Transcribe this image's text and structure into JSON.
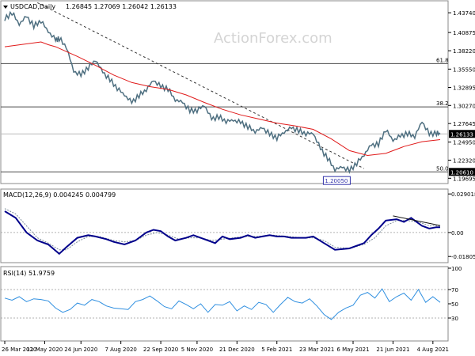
{
  "chart_data": [
    {
      "type": "candlestick",
      "symbol_label": "USDCAD,Daily",
      "ohlc_label": "1.26845 1.27069 1.26042 1.26133",
      "watermark": "ActionForex.com",
      "ylim": [
        1.1915,
        1.4525
      ],
      "y_ticks": [
        1.4374,
        1.4087,
        1.3822,
        1.3555,
        1.3289,
        1.3027,
        1.2764,
        1.2495,
        1.2232,
        1.1969
      ],
      "y_tick_labels": [
        "1.43740",
        "1.40875",
        "1.38220",
        "1.35550",
        "1.32895",
        "1.30270",
        "1.27645",
        "1.24950",
        "1.22320",
        "1.19695"
      ],
      "current_price": 1.26133,
      "current_price_label": "1.26133",
      "fib_levels": [
        {
          "label": "61.8",
          "value": 1.3635
        },
        {
          "label": "38.2",
          "value": 1.3006
        },
        {
          "label": "50.0",
          "value": 1.2061,
          "value_label": "1.20610"
        }
      ],
      "low_label": "1.20050",
      "low_value": 1.2005,
      "close_path": [
        [
          0,
          1.428
        ],
        [
          2,
          1.438
        ],
        [
          4,
          1.421
        ],
        [
          6,
          1.432
        ],
        [
          8,
          1.418
        ],
        [
          10,
          1.426
        ],
        [
          12,
          1.41
        ],
        [
          14,
          1.398
        ],
        [
          15,
          1.4
        ],
        [
          17,
          1.388
        ],
        [
          19,
          1.352
        ],
        [
          21,
          1.347
        ],
        [
          23,
          1.358
        ],
        [
          25,
          1.369
        ],
        [
          27,
          1.351
        ],
        [
          29,
          1.34
        ],
        [
          31,
          1.328
        ],
        [
          33,
          1.318
        ],
        [
          35,
          1.307
        ],
        [
          37,
          1.317
        ],
        [
          39,
          1.326
        ],
        [
          41,
          1.339
        ],
        [
          43,
          1.33
        ],
        [
          45,
          1.327
        ],
        [
          47,
          1.311
        ],
        [
          49,
          1.307
        ],
        [
          51,
          1.295
        ],
        [
          53,
          1.296
        ],
        [
          55,
          1.303
        ],
        [
          57,
          1.283
        ],
        [
          59,
          1.286
        ],
        [
          61,
          1.28
        ],
        [
          63,
          1.281
        ],
        [
          65,
          1.278
        ],
        [
          67,
          1.272
        ],
        [
          69,
          1.265
        ],
        [
          71,
          1.27
        ],
        [
          73,
          1.261
        ],
        [
          75,
          1.256
        ],
        [
          77,
          1.264
        ],
        [
          79,
          1.27
        ],
        [
          81,
          1.266
        ],
        [
          83,
          1.262
        ],
        [
          85,
          1.262
        ],
        [
          87,
          1.24
        ],
        [
          89,
          1.226
        ],
        [
          91,
          1.21
        ],
        [
          93,
          1.213
        ],
        [
          95,
          1.208
        ],
        [
          97,
          1.219
        ],
        [
          99,
          1.231
        ],
        [
          101,
          1.245
        ],
        [
          103,
          1.246
        ],
        [
          105,
          1.268
        ],
        [
          107,
          1.252
        ],
        [
          109,
          1.258
        ],
        [
          111,
          1.262
        ],
        [
          113,
          1.258
        ],
        [
          115,
          1.279
        ],
        [
          117,
          1.261
        ],
        [
          119,
          1.263
        ],
        [
          120,
          1.261
        ]
      ],
      "ma_path": [
        [
          0,
          1.388
        ],
        [
          10,
          1.395
        ],
        [
          12,
          1.391
        ],
        [
          14,
          1.388
        ],
        [
          17,
          1.381
        ],
        [
          20,
          1.374
        ],
        [
          25,
          1.361
        ],
        [
          30,
          1.347
        ],
        [
          35,
          1.336
        ],
        [
          40,
          1.33
        ],
        [
          45,
          1.326
        ],
        [
          50,
          1.318
        ],
        [
          55,
          1.307
        ],
        [
          60,
          1.297
        ],
        [
          65,
          1.289
        ],
        [
          70,
          1.283
        ],
        [
          75,
          1.277
        ],
        [
          80,
          1.273
        ],
        [
          85,
          1.268
        ],
        [
          90,
          1.254
        ],
        [
          95,
          1.237
        ],
        [
          100,
          1.23
        ],
        [
          105,
          1.233
        ],
        [
          110,
          1.243
        ],
        [
          115,
          1.25
        ],
        [
          120,
          1.253
        ]
      ],
      "trendlines": [
        {
          "from": [
            9,
            1.452
          ],
          "to": [
            99,
            1.211
          ],
          "style": "dashed"
        }
      ]
    },
    {
      "type": "macd",
      "label": "MACD(12,26,9) 0.004245 0.004799",
      "ylim": [
        -0.0215,
        0.0315
      ],
      "y_ticks": [
        0.029018,
        0.0,
        -0.018055
      ],
      "y_tick_labels": [
        "0.029018",
        "0.00",
        "-0.018055"
      ],
      "macd_path": [
        [
          0,
          0.016
        ],
        [
          3,
          0.011
        ],
        [
          6,
          0.0
        ],
        [
          9,
          -0.006
        ],
        [
          12,
          -0.009
        ],
        [
          15,
          -0.016
        ],
        [
          17,
          -0.011
        ],
        [
          20,
          -0.004
        ],
        [
          23,
          -0.002
        ],
        [
          25,
          -0.003
        ],
        [
          28,
          -0.005
        ],
        [
          30,
          -0.007
        ],
        [
          33,
          -0.009
        ],
        [
          36,
          -0.006
        ],
        [
          39,
          0.0
        ],
        [
          41,
          0.002
        ],
        [
          43,
          0.001
        ],
        [
          45,
          -0.003
        ],
        [
          47,
          -0.006
        ],
        [
          50,
          -0.004
        ],
        [
          52,
          -0.002
        ],
        [
          55,
          -0.005
        ],
        [
          58,
          -0.008
        ],
        [
          60,
          -0.003
        ],
        [
          62,
          -0.005
        ],
        [
          65,
          -0.004
        ],
        [
          67,
          -0.002
        ],
        [
          69,
          -0.004
        ],
        [
          71,
          -0.003
        ],
        [
          73,
          -0.002
        ],
        [
          75,
          -0.003
        ],
        [
          77,
          -0.003
        ],
        [
          79,
          -0.004
        ],
        [
          81,
          -0.004
        ],
        [
          83,
          -0.004
        ],
        [
          85,
          -0.003
        ],
        [
          88,
          -0.008
        ],
        [
          91,
          -0.013
        ],
        [
          95,
          -0.012
        ],
        [
          99,
          -0.008
        ],
        [
          101,
          -0.002
        ],
        [
          103,
          0.003
        ],
        [
          105,
          0.009
        ],
        [
          108,
          0.01
        ],
        [
          110,
          0.008
        ],
        [
          112,
          0.011
        ],
        [
          115,
          0.005
        ],
        [
          117,
          0.003
        ],
        [
          119,
          0.004
        ],
        [
          120,
          0.004
        ]
      ],
      "signal_path": [
        [
          0,
          0.018
        ],
        [
          3,
          0.014
        ],
        [
          6,
          0.005
        ],
        [
          9,
          -0.004
        ],
        [
          12,
          -0.008
        ],
        [
          15,
          -0.013
        ],
        [
          17,
          -0.013
        ],
        [
          20,
          -0.007
        ],
        [
          23,
          -0.003
        ],
        [
          26,
          -0.003
        ],
        [
          30,
          -0.006
        ],
        [
          33,
          -0.007
        ],
        [
          36,
          -0.006
        ],
        [
          39,
          -0.002
        ],
        [
          42,
          0.0
        ],
        [
          45,
          -0.002
        ],
        [
          48,
          -0.005
        ],
        [
          51,
          -0.004
        ],
        [
          54,
          -0.004
        ],
        [
          57,
          -0.006
        ],
        [
          60,
          -0.005
        ],
        [
          63,
          -0.004
        ],
        [
          66,
          -0.003
        ],
        [
          70,
          -0.003
        ],
        [
          74,
          -0.002
        ],
        [
          78,
          -0.003
        ],
        [
          82,
          -0.004
        ],
        [
          85,
          -0.004
        ],
        [
          88,
          -0.006
        ],
        [
          91,
          -0.011
        ],
        [
          95,
          -0.012
        ],
        [
          99,
          -0.009
        ],
        [
          102,
          -0.004
        ],
        [
          105,
          0.005
        ],
        [
          108,
          0.009
        ],
        [
          111,
          0.009
        ],
        [
          114,
          0.008
        ],
        [
          117,
          0.005
        ],
        [
          120,
          0.005
        ]
      ],
      "trendlines": [
        {
          "from": [
            107,
            0.0125
          ],
          "to": [
            120,
            0.0052
          ],
          "style": "solid"
        }
      ]
    },
    {
      "type": "rsi",
      "label": "RSI(14) 51.9759",
      "ylim": [
        0,
        100
      ],
      "y_ticks": [
        100,
        70,
        50,
        30
      ],
      "y_tick_labels": [
        "100",
        "70",
        "50",
        "30"
      ],
      "rsi_path": [
        [
          0,
          58
        ],
        [
          2,
          55
        ],
        [
          4,
          60
        ],
        [
          6,
          53
        ],
        [
          8,
          57
        ],
        [
          10,
          56
        ],
        [
          12,
          54
        ],
        [
          14,
          44
        ],
        [
          16,
          38
        ],
        [
          18,
          42
        ],
        [
          20,
          51
        ],
        [
          22,
          48
        ],
        [
          24,
          56
        ],
        [
          26,
          53
        ],
        [
          28,
          47
        ],
        [
          30,
          44
        ],
        [
          32,
          43
        ],
        [
          34,
          42
        ],
        [
          36,
          53
        ],
        [
          38,
          56
        ],
        [
          40,
          61
        ],
        [
          42,
          54
        ],
        [
          44,
          46
        ],
        [
          46,
          43
        ],
        [
          48,
          54
        ],
        [
          50,
          49
        ],
        [
          52,
          43
        ],
        [
          54,
          50
        ],
        [
          56,
          38
        ],
        [
          58,
          49
        ],
        [
          60,
          48
        ],
        [
          62,
          53
        ],
        [
          64,
          40
        ],
        [
          66,
          47
        ],
        [
          68,
          42
        ],
        [
          70,
          52
        ],
        [
          72,
          49
        ],
        [
          74,
          38
        ],
        [
          76,
          49
        ],
        [
          78,
          59
        ],
        [
          80,
          53
        ],
        [
          82,
          51
        ],
        [
          84,
          57
        ],
        [
          86,
          47
        ],
        [
          88,
          35
        ],
        [
          90,
          28
        ],
        [
          92,
          38
        ],
        [
          94,
          44
        ],
        [
          96,
          48
        ],
        [
          98,
          62
        ],
        [
          100,
          66
        ],
        [
          102,
          58
        ],
        [
          104,
          71
        ],
        [
          106,
          53
        ],
        [
          108,
          60
        ],
        [
          110,
          65
        ],
        [
          112,
          55
        ],
        [
          114,
          70
        ],
        [
          116,
          52
        ],
        [
          118,
          60
        ],
        [
          120,
          52
        ]
      ]
    }
  ],
  "x_axis": {
    "tick_labels": [
      "26 Mar 2020",
      "11 May 2020",
      "24 Jun 2020",
      "7 Aug 2020",
      "22 Sep 2020",
      "5 Nov 2020",
      "21 Dec 2020",
      "5 Feb 2021",
      "23 Mar 2021",
      "6 May 2021",
      "21 Jun 2021",
      "4 Aug 2021"
    ],
    "tick_index": [
      0,
      11,
      21,
      32,
      43,
      53,
      64,
      75,
      86,
      96,
      107,
      118
    ]
  },
  "colors": {
    "price": "#4e6f80",
    "ma": "#e01a1a",
    "macd": "#00008b",
    "signal": "#7a8a99",
    "rsi": "#2f8fe0",
    "fib": "#4b4b4b",
    "current_price_box": "#000000",
    "low_box": "#3333aa",
    "watermark": "#d4d4d4"
  }
}
